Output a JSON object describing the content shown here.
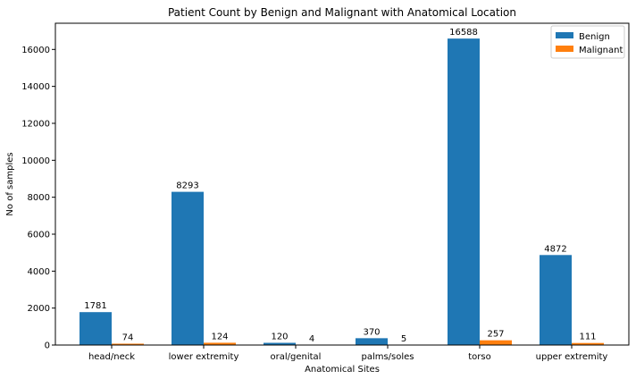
{
  "chart_data": {
    "type": "bar",
    "title": "Patient Count by Benign and Malignant with Anatomical Location",
    "xlabel": "Anatomical Sites",
    "ylabel": "No of samples",
    "categories": [
      "head/neck",
      "lower extremity",
      "oral/genital",
      "palms/soles",
      "torso",
      "upper extremity"
    ],
    "series": [
      {
        "name": "Benign",
        "color": "#1f77b4",
        "values": [
          1781,
          8293,
          120,
          370,
          16588,
          4872
        ]
      },
      {
        "name": "Malignant",
        "color": "#ff7f0e",
        "values": [
          74,
          124,
          4,
          5,
          257,
          111
        ]
      }
    ],
    "ylim": [
      0,
      17418
    ],
    "yticks": [
      0,
      2000,
      4000,
      6000,
      8000,
      10000,
      12000,
      14000,
      16000
    ],
    "grid": false,
    "legend_position": "top-right"
  }
}
